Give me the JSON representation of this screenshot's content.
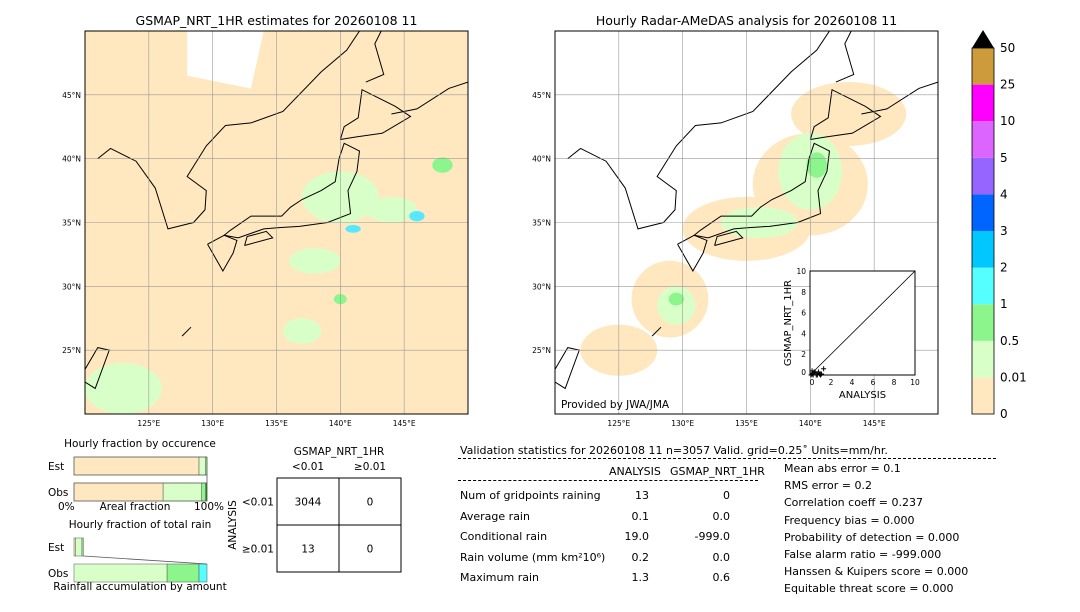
{
  "maps": [
    {
      "title": "GSMAP_NRT_1HR estimates for 20260108 11",
      "lon_range": [
        120,
        150
      ],
      "lat_range": [
        20,
        50
      ],
      "xticks": [
        "125°E",
        "130°E",
        "135°E",
        "140°E",
        "145°E"
      ],
      "yticks": [
        "45°N",
        "40°N",
        "35°N",
        "30°N",
        "25°N"
      ],
      "rain_areas": [
        [
          122,
          47,
          3,
          2,
          "#ffe8c0"
        ],
        [
          140,
          37,
          3,
          2,
          "#d9ffc8"
        ],
        [
          144,
          36,
          2,
          1,
          "#d9ffc8"
        ],
        [
          146,
          35.5,
          0.6,
          0.4,
          "#55e8ff"
        ],
        [
          141,
          34.5,
          0.6,
          0.3,
          "#55e8ff"
        ],
        [
          140,
          29,
          0.5,
          0.4,
          "#8cf58c"
        ],
        [
          148,
          39.5,
          0.8,
          0.6,
          "#8cf58c"
        ],
        [
          137,
          26.5,
          1.5,
          1,
          "#d9ffc8"
        ],
        [
          123,
          22,
          3,
          2,
          "#d9ffc8"
        ],
        [
          138,
          32,
          2,
          1,
          "#d9ffc8"
        ]
      ]
    },
    {
      "title": "Hourly Radar-AMeDAS analysis for 20260108 11",
      "lon_range": [
        120,
        150
      ],
      "lat_range": [
        20,
        50
      ],
      "xticks": [
        "125°E",
        "130°E",
        "135°E",
        "140°E",
        "145°E"
      ],
      "yticks": [
        "45°N",
        "40°N",
        "35°N",
        "30°N",
        "25°N"
      ],
      "credit": "Provided by JWA/JMA",
      "rain_areas": [
        [
          143,
          43.5,
          4.5,
          2.5,
          "#ffe8c0"
        ],
        [
          140,
          38,
          4.5,
          4,
          "#ffe8c0"
        ],
        [
          135,
          34.5,
          5,
          2.5,
          "#ffe8c0"
        ],
        [
          129,
          29,
          3,
          3,
          "#ffe8c0"
        ],
        [
          125,
          25,
          3,
          2,
          "#ffe8c0"
        ],
        [
          140,
          39,
          2.5,
          3,
          "#d9ffc8"
        ],
        [
          136,
          35,
          3,
          1.2,
          "#d9ffc8"
        ],
        [
          129.5,
          28.5,
          1.5,
          1.5,
          "#d9ffc8"
        ],
        [
          140.5,
          39.5,
          0.8,
          1,
          "#8cf58c"
        ],
        [
          129.5,
          29,
          0.6,
          0.5,
          "#8cf58c"
        ]
      ]
    }
  ],
  "colorbar": {
    "levels": [
      "0",
      "0.01",
      "0.5",
      "1",
      "2",
      "3",
      "4",
      "5",
      "10",
      "25",
      "50"
    ],
    "colors": [
      "#ffe8c0",
      "#d9ffc8",
      "#8cf58c",
      "#55ffff",
      "#00c8ff",
      "#0064ff",
      "#9664ff",
      "#dc64ff",
      "#ff00ff",
      "#cd9b3c"
    ],
    "extend_color": "#000000"
  },
  "scatter": {
    "xlabel": "ANALYSIS",
    "ylabel": "GSMAP_NRT_1HR",
    "xlim": [
      0,
      10
    ],
    "ylim": [
      0,
      10
    ],
    "ticks": [
      "0",
      "2",
      "4",
      "6",
      "8",
      "10"
    ],
    "points": [
      [
        0.1,
        0
      ],
      [
        0.2,
        0.1
      ],
      [
        0.3,
        0
      ],
      [
        0.5,
        0.2
      ],
      [
        0.7,
        0
      ],
      [
        0.9,
        0.1
      ],
      [
        1.0,
        0
      ],
      [
        1.3,
        0.6
      ],
      [
        0.4,
        0.3
      ],
      [
        0.6,
        0
      ],
      [
        0.2,
        0.4
      ],
      [
        1.1,
        0.1
      ],
      [
        0.8,
        0.3
      ]
    ]
  },
  "occurrence": {
    "title": "Hourly fraction by occurence",
    "rows": [
      "Est",
      "Obs"
    ],
    "xlabel": "Areal fraction",
    "x0": "0%",
    "x1": "100%",
    "est": [
      [
        0.94,
        "#ffe8c0"
      ],
      [
        0.05,
        "#d9ffc8"
      ],
      [
        0.01,
        "#8cf58c"
      ]
    ],
    "obs": [
      [
        0.67,
        "#ffe8c0"
      ],
      [
        0.29,
        "#d9ffc8"
      ],
      [
        0.03,
        "#8cf58c"
      ],
      [
        0.01,
        "#1a8a1a"
      ]
    ]
  },
  "totalrain": {
    "title": "Hourly fraction of total rain",
    "rows": [
      "Est",
      "Obs"
    ],
    "xlabel": "Rainfall accumulation by amount",
    "est": [
      [
        0.01,
        "#ffe8c0"
      ],
      [
        0.05,
        "#d9ffc8"
      ],
      [
        0.01,
        "#8cf58c"
      ]
    ],
    "obs": [
      [
        0.7,
        "#d9ffc8"
      ],
      [
        0.24,
        "#8cf58c"
      ],
      [
        0.06,
        "#55ffff"
      ]
    ]
  },
  "contingency": {
    "title": "GSMAP_NRT_1HR",
    "cols": [
      "<0.01",
      "≥0.01"
    ],
    "ylabel": "ANALYSIS",
    "rows": [
      "<0.01",
      "≥0.01"
    ],
    "cells": [
      [
        "3044",
        "0"
      ],
      [
        "13",
        "0"
      ]
    ]
  },
  "stats": {
    "header": "Validation statistics for 20260108 11  n=3057 Valid. grid=0.25˚ Units=mm/hr.",
    "cols": [
      "ANALYSIS",
      "GSMAP_NRT_1HR"
    ],
    "rows": [
      [
        "Num of gridpoints raining",
        "13",
        "0"
      ],
      [
        "Average rain",
        "0.1",
        "0.0"
      ],
      [
        "Conditional rain",
        "19.0",
        "-999.0"
      ],
      [
        "Rain volume (mm km²10⁶)",
        "0.2",
        "0.0"
      ],
      [
        "Maximum rain",
        "1.3",
        "0.6"
      ]
    ],
    "scores": [
      "Mean abs error =    0.1",
      "RMS error =    0.2",
      "Correlation coeff =  0.237",
      "Frequency bias =  0.000",
      "Probability of detection =  0.000",
      "False alarm ratio = -999.000",
      "Hanssen & Kuipers score =  0.000",
      "Equitable threat score =  0.000"
    ]
  }
}
